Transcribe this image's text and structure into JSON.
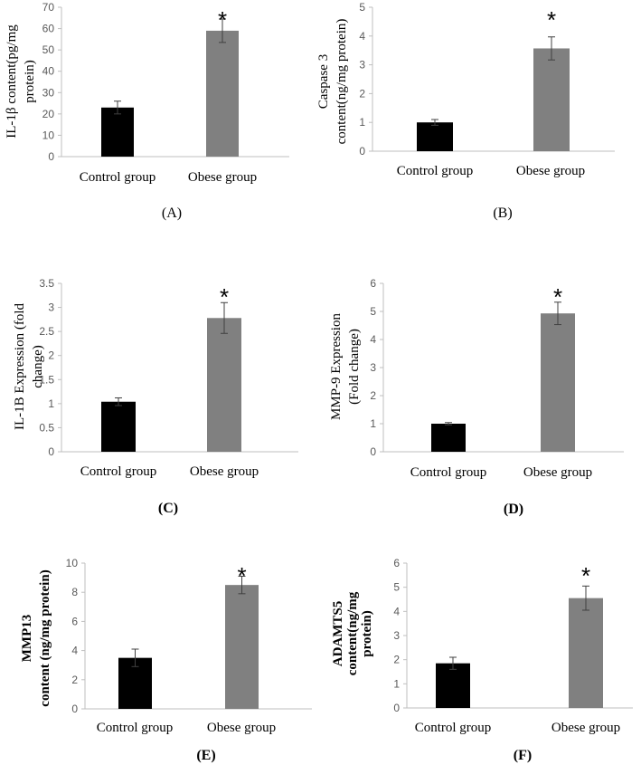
{
  "chart_data": [
    {
      "panel": "(A)",
      "type": "bar",
      "categories": [
        "Control group",
        "Obese group"
      ],
      "values": [
        23,
        59
      ],
      "errors": [
        3,
        5.5
      ],
      "ylim": [
        0,
        70
      ],
      "ticks": [
        0,
        10,
        20,
        30,
        40,
        50,
        60,
        70
      ],
      "ylabel_lines": [
        "IL-1β content(pg/mg",
        "protein)"
      ],
      "colors": [
        "#000000",
        "#808080"
      ],
      "significance": [
        "",
        "*"
      ]
    },
    {
      "panel": "(B)",
      "type": "bar",
      "categories": [
        "Control group",
        "Obese group"
      ],
      "values": [
        1.0,
        3.57
      ],
      "errors": [
        0.1,
        0.4
      ],
      "ylim": [
        0,
        5
      ],
      "ticks": [
        0,
        1,
        2,
        3,
        4,
        5
      ],
      "ylabel_lines": [
        "Caspase 3",
        "content(ng/mg protein)"
      ],
      "colors": [
        "#000000",
        "#808080"
      ],
      "significance": [
        "",
        "*"
      ]
    },
    {
      "panel": "(C)",
      "type": "bar",
      "categories": [
        "Control group",
        "Obese group"
      ],
      "values": [
        1.04,
        2.78
      ],
      "errors": [
        0.08,
        0.32
      ],
      "ylim": [
        0,
        3.5
      ],
      "ticks": [
        "0",
        "0.5",
        "1",
        "1.5",
        "2",
        "2.5",
        "3",
        "3.5"
      ],
      "ylabel_lines": [
        "IL-1B  Expression (fold",
        "change)"
      ],
      "colors": [
        "#000000",
        "#808080"
      ],
      "significance": [
        "",
        "*"
      ]
    },
    {
      "panel": "(D)",
      "type": "bar",
      "categories": [
        "Control group",
        "Obese group"
      ],
      "values": [
        1.0,
        4.93
      ],
      "errors": [
        0.04,
        0.4
      ],
      "ylim": [
        0,
        6
      ],
      "ticks": [
        0,
        1,
        2,
        3,
        4,
        5,
        6
      ],
      "ylabel_lines": [
        "MMP-9  Expression",
        "(Fold change)"
      ],
      "colors": [
        "#000000",
        "#808080"
      ],
      "significance": [
        "",
        "*"
      ]
    },
    {
      "panel": "(E)",
      "type": "bar",
      "categories": [
        "Control group",
        "Obese group"
      ],
      "values": [
        3.5,
        8.5
      ],
      "errors": [
        0.6,
        0.6
      ],
      "ylim": [
        0,
        10
      ],
      "ticks": [
        0,
        2,
        4,
        6,
        8,
        10
      ],
      "ylabel_lines": [
        "MMP13",
        "content (ng/mg protein)"
      ],
      "colors": [
        "#000000",
        "#808080"
      ],
      "significance": [
        "",
        "*"
      ]
    },
    {
      "panel": "(F)",
      "type": "bar",
      "categories": [
        "Control group",
        "Obese group"
      ],
      "values": [
        1.85,
        4.55
      ],
      "errors": [
        0.25,
        0.5
      ],
      "ylim": [
        0,
        6
      ],
      "ticks": [
        0,
        1,
        2,
        3,
        4,
        5,
        6
      ],
      "ylabel_lines": [
        "ADAMTS5",
        "content(ng/mg",
        "protein)"
      ],
      "colors": [
        "#000000",
        "#808080"
      ],
      "significance": [
        "",
        "*"
      ]
    }
  ]
}
